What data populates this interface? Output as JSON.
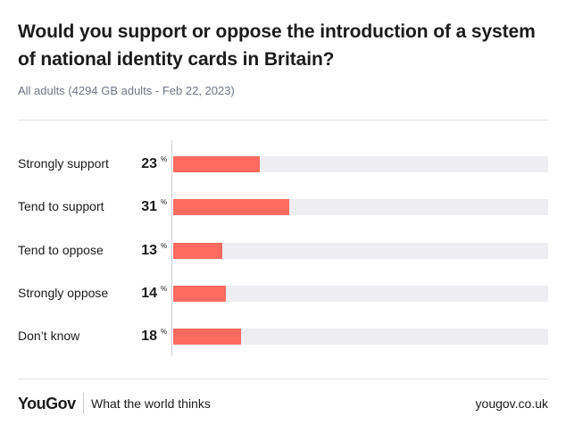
{
  "chart_data": {
    "type": "bar",
    "orientation": "horizontal",
    "title": "Would you support or oppose the introduction of a system of national identity cards in Britain?",
    "subtitle": "All adults (4294 GB adults - Feb 22, 2023)",
    "unit_symbol": "%",
    "xlim": [
      0,
      100
    ],
    "categories": [
      "Strongly support",
      "Tend to support",
      "Tend to oppose",
      "Strongly oppose",
      "Don’t know"
    ],
    "values": [
      23,
      31,
      13,
      14,
      18
    ],
    "bar_color": "#ff6b5e",
    "track_color": "#eeeef2"
  },
  "footer": {
    "logo": "YouGov",
    "tagline": "What the world thinks",
    "site": "yougov.co.uk"
  }
}
